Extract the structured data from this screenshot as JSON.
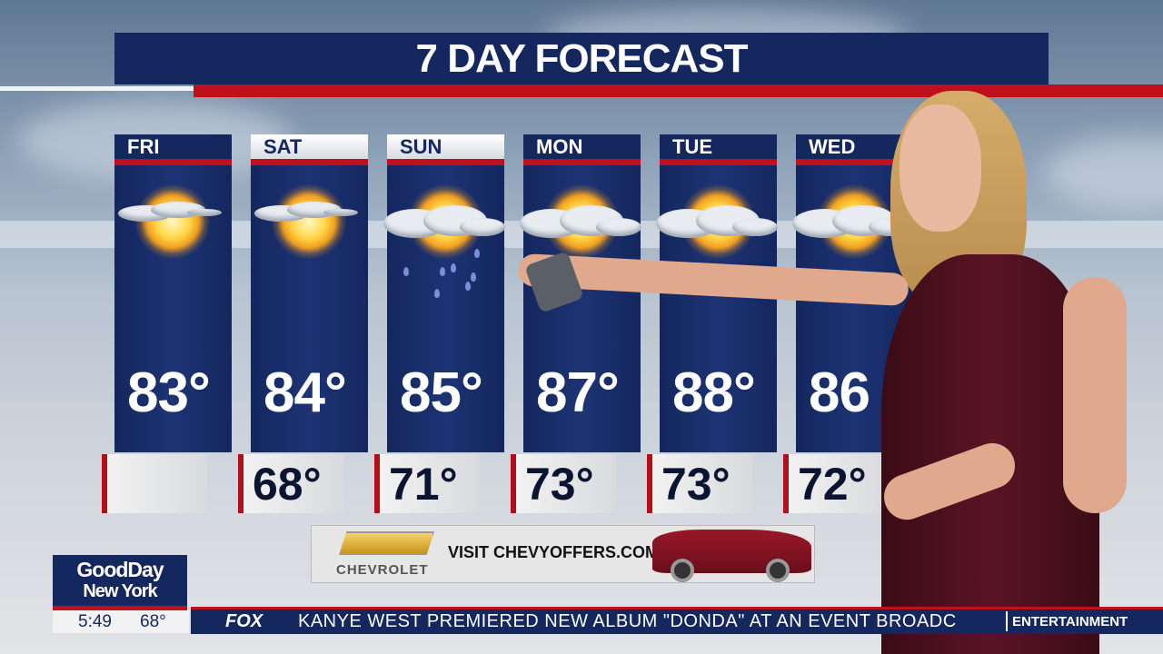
{
  "title": "7 DAY FORECAST",
  "days": [
    {
      "day": "FRI",
      "high": "83°",
      "low": "",
      "icon": "partly-sunny-icon"
    },
    {
      "day": "SAT",
      "high": "84°",
      "low": "68°",
      "icon": "partly-sunny-icon"
    },
    {
      "day": "SUN",
      "high": "85°",
      "low": "71°",
      "icon": "rain-icon"
    },
    {
      "day": "MON",
      "high": "87°",
      "low": "73°",
      "icon": "partly-cloudy-icon"
    },
    {
      "day": "TUE",
      "high": "88°",
      "low": "73°",
      "icon": "partly-cloudy-icon"
    },
    {
      "day": "WED",
      "high": "86",
      "low": "72°",
      "icon": "partly-cloudy-icon"
    }
  ],
  "ad": {
    "brand": "CHEVROLET",
    "text": "VISIT CHEVYOFFERS.COM"
  },
  "show": {
    "line1": "GoodDay",
    "line2": "New York",
    "time": "5:49",
    "temp": "68°"
  },
  "ticker": {
    "network": "FOX",
    "headline": "KANYE WEST PREMIERED NEW ALBUM \"DONDA\" AT AN EVENT BROADC",
    "category": "ENTERTAINMENT"
  },
  "colors": {
    "navy": "#14275e",
    "red": "#c0101c"
  }
}
